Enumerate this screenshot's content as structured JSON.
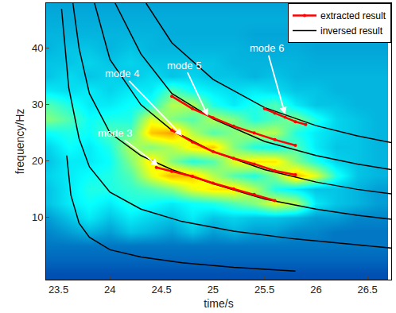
{
  "chart_data": {
    "type": "heatmap",
    "x_label": "time/s",
    "y_label": "frequency/Hz",
    "xlim": [
      23.38,
      26.73
    ],
    "ylim": [
      -1,
      48
    ],
    "xticks": [
      23.5,
      24,
      24.5,
      25,
      25.5,
      26,
      26.5
    ],
    "yticks": [
      10,
      20,
      30,
      40
    ],
    "legend": "upper right",
    "heatmap": {
      "x": [
        23.4,
        23.6,
        23.8,
        24.0,
        24.2,
        24.4,
        24.6,
        24.8,
        25.0,
        25.2,
        25.4,
        25.6,
        25.8,
        26.0,
        26.2,
        26.4,
        26.6
      ],
      "y": [
        0,
        2.5,
        5,
        7.5,
        10,
        12.5,
        15,
        17.5,
        20,
        22.5,
        25,
        27.5,
        30,
        32.5,
        35,
        37.5,
        40,
        42.5,
        45,
        47.5
      ],
      "zlim": [
        0,
        1
      ],
      "z": [
        [
          0.15,
          0.15,
          0.15,
          0.15,
          0.15,
          0.15,
          0.15,
          0.15,
          0.15,
          0.15,
          0.15,
          0.15,
          0.15,
          0.15,
          0.15,
          0.15,
          0.15
        ],
        [
          0.18,
          0.18,
          0.18,
          0.18,
          0.18,
          0.18,
          0.18,
          0.18,
          0.18,
          0.18,
          0.18,
          0.18,
          0.18,
          0.18,
          0.18,
          0.18,
          0.18
        ],
        [
          0.2,
          0.2,
          0.2,
          0.2,
          0.2,
          0.2,
          0.2,
          0.2,
          0.2,
          0.2,
          0.2,
          0.2,
          0.2,
          0.2,
          0.2,
          0.2,
          0.2
        ],
        [
          0.22,
          0.25,
          0.28,
          0.25,
          0.3,
          0.28,
          0.25,
          0.3,
          0.25,
          0.28,
          0.25,
          0.25,
          0.22,
          0.22,
          0.2,
          0.2,
          0.2
        ],
        [
          0.25,
          0.3,
          0.35,
          0.3,
          0.35,
          0.32,
          0.3,
          0.35,
          0.3,
          0.32,
          0.3,
          0.3,
          0.28,
          0.25,
          0.25,
          0.22,
          0.22
        ],
        [
          0.3,
          0.35,
          0.38,
          0.35,
          0.4,
          0.38,
          0.35,
          0.38,
          0.4,
          0.45,
          0.5,
          0.6,
          0.55,
          0.35,
          0.3,
          0.28,
          0.25
        ],
        [
          0.3,
          0.35,
          0.4,
          0.4,
          0.42,
          0.45,
          0.5,
          0.6,
          0.65,
          0.65,
          0.55,
          0.4,
          0.35,
          0.3,
          0.3,
          0.28,
          0.25
        ],
        [
          0.32,
          0.35,
          0.38,
          0.4,
          0.45,
          0.6,
          0.7,
          0.68,
          0.55,
          0.45,
          0.4,
          0.5,
          0.7,
          0.6,
          0.4,
          0.3,
          0.28
        ],
        [
          0.3,
          0.35,
          0.35,
          0.38,
          0.5,
          0.65,
          0.5,
          0.4,
          0.45,
          0.6,
          0.65,
          0.65,
          0.5,
          0.4,
          0.32,
          0.3,
          0.28
        ],
        [
          0.32,
          0.38,
          0.35,
          0.4,
          0.55,
          0.5,
          0.55,
          0.65,
          0.68,
          0.5,
          0.4,
          0.38,
          0.45,
          0.35,
          0.3,
          0.3,
          0.28
        ],
        [
          0.38,
          0.4,
          0.38,
          0.45,
          0.45,
          0.68,
          0.72,
          0.55,
          0.45,
          0.5,
          0.55,
          0.55,
          0.4,
          0.35,
          0.32,
          0.3,
          0.28
        ],
        [
          0.5,
          0.45,
          0.38,
          0.4,
          0.4,
          0.6,
          0.5,
          0.45,
          0.55,
          0.5,
          0.4,
          0.45,
          0.5,
          0.4,
          0.32,
          0.3,
          0.28
        ],
        [
          0.45,
          0.4,
          0.35,
          0.35,
          0.38,
          0.4,
          0.55,
          0.55,
          0.4,
          0.35,
          0.4,
          0.45,
          0.35,
          0.3,
          0.3,
          0.28,
          0.28
        ],
        [
          0.35,
          0.33,
          0.35,
          0.32,
          0.35,
          0.35,
          0.45,
          0.38,
          0.35,
          0.33,
          0.35,
          0.33,
          0.3,
          0.3,
          0.28,
          0.28,
          0.28
        ],
        [
          0.3,
          0.33,
          0.3,
          0.32,
          0.3,
          0.33,
          0.3,
          0.32,
          0.3,
          0.3,
          0.28,
          0.3,
          0.28,
          0.28,
          0.28,
          0.28,
          0.28
        ],
        [
          0.3,
          0.3,
          0.32,
          0.3,
          0.32,
          0.3,
          0.3,
          0.3,
          0.3,
          0.28,
          0.28,
          0.28,
          0.28,
          0.27,
          0.27,
          0.27,
          0.27
        ],
        [
          0.28,
          0.3,
          0.3,
          0.28,
          0.3,
          0.28,
          0.28,
          0.28,
          0.28,
          0.28,
          0.27,
          0.27,
          0.27,
          0.26,
          0.26,
          0.26,
          0.26
        ],
        [
          0.28,
          0.28,
          0.28,
          0.28,
          0.28,
          0.28,
          0.27,
          0.27,
          0.27,
          0.27,
          0.26,
          0.26,
          0.26,
          0.26,
          0.26,
          0.26,
          0.26
        ],
        [
          0.27,
          0.27,
          0.27,
          0.27,
          0.27,
          0.27,
          0.27,
          0.27,
          0.27,
          0.27,
          0.27,
          0.27,
          0.27,
          0.27,
          0.27,
          0.27,
          0.27
        ],
        [
          0.26,
          0.26,
          0.26,
          0.26,
          0.26,
          0.26,
          0.26,
          0.26,
          0.26,
          0.26,
          0.26,
          0.26,
          0.26,
          0.26,
          0.26,
          0.26,
          0.26
        ]
      ]
    },
    "series": [
      {
        "name": "extracted result",
        "color": "#ff0000",
        "marker": "circle",
        "line_style": "solid",
        "segments": [
          {
            "x": [
              24.45,
              24.6,
              24.8,
              25.0,
              25.2,
              25.4,
              25.6
            ],
            "y": [
              18.9,
              18.2,
              17.3,
              16.1,
              15.1,
              14.1,
              13.0
            ]
          },
          {
            "x": [
              24.6,
              24.8,
              25.0,
              25.2,
              25.4,
              25.6,
              25.8
            ],
            "y": [
              25.5,
              23.4,
              21.7,
              20.5,
              19.5,
              18.3,
              17.6
            ]
          },
          {
            "x": [
              24.6,
              24.8,
              25.0,
              25.2,
              25.4,
              25.6,
              25.8
            ],
            "y": [
              31.5,
              29.3,
              27.7,
              26.2,
              25.0,
              23.8,
              22.8
            ]
          },
          {
            "x": [
              25.5,
              25.6,
              25.7,
              25.8,
              25.9
            ],
            "y": [
              29.3,
              28.5,
              27.8,
              27.0,
              26.5
            ]
          }
        ]
      },
      {
        "name": "inversed result",
        "color": "#000000",
        "line_style": "solid",
        "segments": [
          {
            "x": [
              23.58,
              23.62,
              23.7,
              23.8,
              24.0,
              24.3,
              24.7,
              25.2,
              25.8
            ],
            "y": [
              21,
              14,
              9,
              6.5,
              4.3,
              3,
              2,
              1.2,
              0.5
            ]
          },
          {
            "x": [
              23.53,
              23.6,
              23.7,
              23.8,
              24.0,
              24.3,
              24.7,
              25.2,
              25.8,
              26.3,
              26.73
            ],
            "y": [
              47,
              33,
              24,
              19,
              14.5,
              11.5,
              9.3,
              7.6,
              6.2,
              5.3,
              4.6
            ]
          },
          {
            "x": [
              23.64,
              23.7,
              23.8,
              24.0,
              24.3,
              24.6,
              25.0,
              25.5,
              26.0,
              26.4,
              26.73
            ],
            "y": [
              48,
              40,
              32,
              25,
              21,
              18.5,
              16,
              13.3,
              11.5,
              10.4,
              9.7
            ]
          },
          {
            "x": [
              23.85,
              24.0,
              24.3,
              24.6,
              25.0,
              25.5,
              26.0,
              26.4,
              26.73
            ],
            "y": [
              48,
              38,
              30,
              25.5,
              21.7,
              18.5,
              16.3,
              15,
              14.2
            ]
          },
          {
            "x": [
              24.05,
              24.3,
              24.6,
              25.0,
              25.5,
              26.0,
              26.4,
              26.73
            ],
            "y": [
              48,
              39,
              32,
              27.5,
              23.5,
              21,
              19.5,
              18.5
            ]
          },
          {
            "x": [
              24.35,
              24.6,
              25.0,
              25.5,
              26.0,
              26.4,
              26.73
            ],
            "y": [
              48,
              41,
              34.5,
              29.5,
              26.3,
              24.5,
              23.3
            ]
          }
        ]
      }
    ],
    "annotations": [
      {
        "text": "mode 3",
        "x": 24.47,
        "y": 19.2,
        "text_x": 24.05,
        "text_y": 25
      },
      {
        "text": "mode 4",
        "x": 24.7,
        "y": 24.5,
        "text_x": 24.12,
        "text_y": 35.5
      },
      {
        "text": "mode 5",
        "x": 24.95,
        "y": 28,
        "text_x": 24.72,
        "text_y": 37
      },
      {
        "text": "mode 6",
        "x": 25.7,
        "y": 28.3,
        "text_x": 25.52,
        "text_y": 40
      }
    ]
  }
}
